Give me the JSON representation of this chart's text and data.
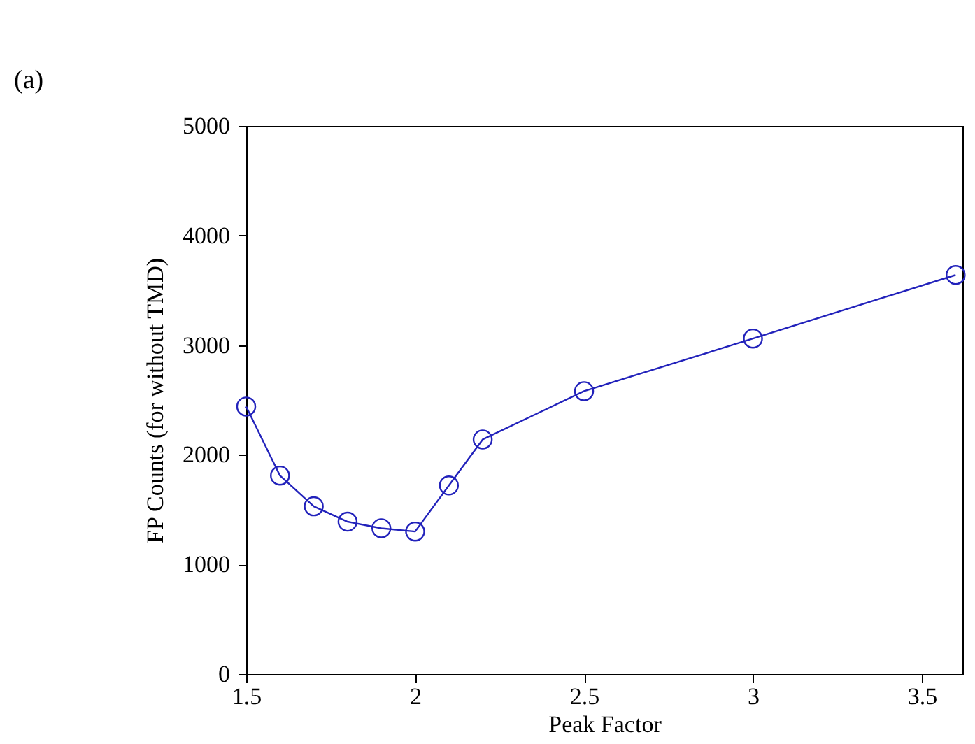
{
  "chart_data": {
    "type": "line",
    "xlabel": "Peak Factor",
    "ylabel": "FP Counts (for without TMD)",
    "annotations": [
      "(a)"
    ],
    "x": [
      1.5,
      1.6,
      1.7,
      1.8,
      1.9,
      2.0,
      2.1,
      2.2,
      2.5,
      3.0,
      3.6
    ],
    "series": [
      {
        "color": "#2222bb",
        "values": [
          2440,
          1810,
          1530,
          1390,
          1330,
          1300,
          1720,
          2140,
          2580,
          3060,
          3640
        ]
      }
    ],
    "xlim": [
      1.5,
      3.62
    ],
    "xticks": [
      1.5,
      2,
      2.5,
      3,
      3.5
    ],
    "ylim": [
      0,
      5000
    ],
    "yticks": [
      0,
      1000,
      2000,
      3000,
      4000,
      5000
    ],
    "grid": false,
    "marker": "circle",
    "line_style": "solid",
    "legend": false
  }
}
